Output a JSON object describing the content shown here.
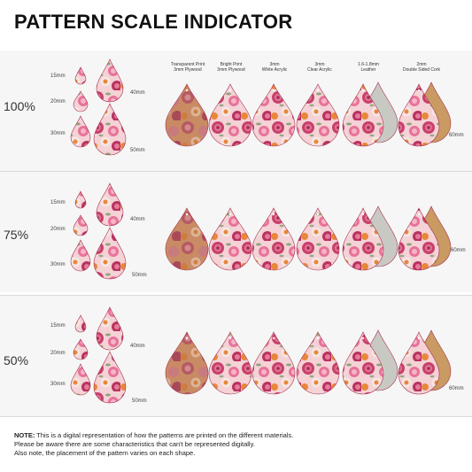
{
  "title": "PATTERN SCALE INDICATOR",
  "material_headers": [
    "Transparent Print\n3mm Plywood",
    "Bright Print\n3mm Plywood",
    "3mm\nWhite Acrylic",
    "3mm\nClear Acrylic",
    "1.6-1.8mm\nLeather",
    "2mm\nDouble Sided Cork"
  ],
  "rows": [
    {
      "scale": "100%",
      "sizes": {
        "s15": "15mm",
        "s20": "20mm",
        "s30": "30mm",
        "s40": "40mm",
        "s50": "50mm",
        "s60": "60mm"
      }
    },
    {
      "scale": "75%",
      "sizes": {
        "s15": "15mm",
        "s20": "20mm",
        "s30": "30mm",
        "s40": "40mm",
        "s50": "50mm",
        "s60": "60mm"
      }
    },
    {
      "scale": "50%",
      "sizes": {
        "s15": "15mm",
        "s20": "20mm",
        "s30": "30mm",
        "s40": "40mm",
        "s50": "50mm",
        "s60": "60mm"
      }
    }
  ],
  "note": {
    "label": "NOTE:",
    "line1": " This is a digital representation of how the patterns are printed on the different materials.",
    "line2": "Please be aware there are some characteristics that can't be represented digitally.",
    "line3": "Also note, the placement of the pattern varies on each shape."
  },
  "colors": {
    "rose_dark": "#b8325f",
    "rose_mid": "#e0708f",
    "rose_light": "#f4bfc9",
    "orange": "#e8873a",
    "leather": "#c9c9c4",
    "cork": "#c99a62",
    "wood": "#b9774f"
  }
}
